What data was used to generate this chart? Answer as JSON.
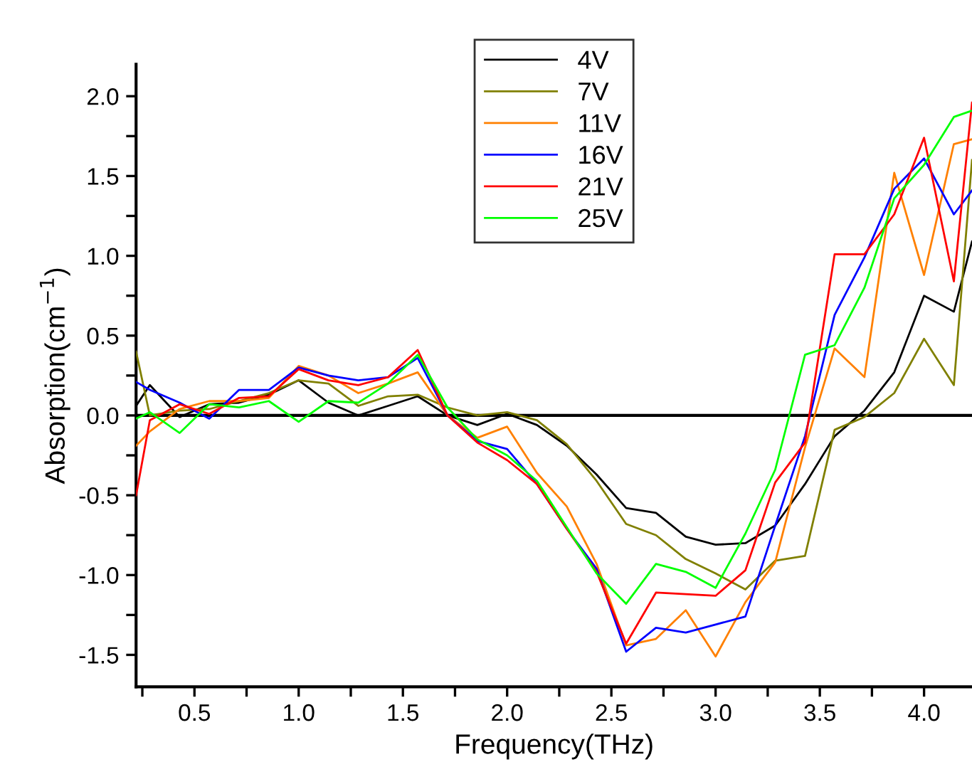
{
  "chart_data": {
    "type": "line",
    "xlabel": "Frequency(THz)",
    "ylabel": "Absorption(cm$^{−1}$)",
    "x": [
      0.22,
      0.286,
      0.429,
      0.571,
      0.714,
      0.857,
      1.0,
      1.143,
      1.286,
      1.429,
      1.571,
      1.714,
      1.857,
      2.0,
      2.143,
      2.286,
      2.429,
      2.571,
      2.714,
      2.857,
      3.0,
      3.143,
      3.286,
      3.429,
      3.571,
      3.714,
      3.857,
      4.0,
      4.143,
      4.23
    ],
    "series": [
      {
        "name": "4V",
        "color": "#000000",
        "values": [
          0.06,
          0.19,
          -0.01,
          0.07,
          0.08,
          0.13,
          0.22,
          0.08,
          0.0,
          0.06,
          0.12,
          0.0,
          -0.06,
          0.01,
          -0.06,
          -0.19,
          -0.37,
          -0.58,
          -0.61,
          -0.76,
          -0.81,
          -0.8,
          -0.69,
          -0.43,
          -0.13,
          0.03,
          0.27,
          0.75,
          0.65,
          1.09
        ]
      },
      {
        "name": "7V",
        "color": "#808000",
        "values": [
          0.4,
          0.0,
          0.03,
          0.04,
          0.09,
          0.14,
          0.22,
          0.2,
          0.06,
          0.12,
          0.13,
          0.05,
          0.0,
          0.02,
          -0.03,
          -0.18,
          -0.41,
          -0.68,
          -0.75,
          -0.9,
          -0.99,
          -1.09,
          -0.91,
          -0.88,
          -0.09,
          -0.01,
          0.14,
          0.48,
          0.19,
          1.6
        ]
      },
      {
        "name": "11V",
        "color": "#ff8000",
        "values": [
          -0.19,
          -0.1,
          0.04,
          0.09,
          0.09,
          0.11,
          0.31,
          0.25,
          0.14,
          0.2,
          0.27,
          0.0,
          -0.14,
          -0.07,
          -0.36,
          -0.57,
          -0.93,
          -1.44,
          -1.4,
          -1.22,
          -1.51,
          -1.17,
          -0.92,
          -0.2,
          0.42,
          0.24,
          1.52,
          0.88,
          1.7,
          1.73
        ]
      },
      {
        "name": "16V",
        "color": "#0000ff",
        "values": [
          0.21,
          0.16,
          0.08,
          -0.02,
          0.16,
          0.16,
          0.3,
          0.25,
          0.22,
          0.24,
          0.36,
          0.0,
          -0.16,
          -0.21,
          -0.43,
          -0.71,
          -0.96,
          -1.48,
          -1.33,
          -1.36,
          -1.31,
          -1.26,
          -0.69,
          -0.13,
          0.63,
          0.99,
          1.42,
          1.61,
          1.26,
          1.41
        ]
      },
      {
        "name": "21V",
        "color": "#ff0000",
        "values": [
          -0.5,
          -0.03,
          0.07,
          0.01,
          0.11,
          0.12,
          0.29,
          0.22,
          0.19,
          0.24,
          0.41,
          0.0,
          -0.17,
          -0.28,
          -0.43,
          -0.71,
          -0.98,
          -1.43,
          -1.11,
          -1.12,
          -1.13,
          -0.97,
          -0.42,
          -0.17,
          1.01,
          1.01,
          1.26,
          1.74,
          0.84,
          1.96
        ]
      },
      {
        "name": "25V",
        "color": "#00ff00",
        "values": [
          -0.02,
          0.02,
          -0.11,
          0.07,
          0.05,
          0.09,
          -0.04,
          0.09,
          0.08,
          0.2,
          0.38,
          0.05,
          -0.15,
          -0.25,
          -0.41,
          -0.7,
          -0.99,
          -1.18,
          -0.93,
          -0.98,
          -1.08,
          -0.74,
          -0.34,
          0.38,
          0.44,
          0.8,
          1.36,
          1.57,
          1.87,
          1.91
        ]
      }
    ],
    "xlim": [
      0.22,
      4.23
    ],
    "ylim": [
      -1.7,
      2.2
    ],
    "xticks": [
      {
        "value": 0.25,
        "label": null
      },
      0.5,
      {
        "value": 0.75,
        "label": null
      },
      {
        "value": 1,
        "label": "1.0"
      },
      {
        "value": 1.25,
        "label": null
      },
      1.5,
      {
        "value": 1.75,
        "label": null
      },
      {
        "value": 2,
        "label": "2.0"
      },
      {
        "value": 2.25,
        "label": null
      },
      2.5,
      {
        "value": 2.75,
        "label": null
      },
      {
        "value": 3,
        "label": "3.0"
      },
      {
        "value": 3.25,
        "label": null
      },
      3.5,
      {
        "value": 3.75,
        "label": null
      },
      {
        "value": 4,
        "label": "4.0"
      }
    ],
    "yticks": [
      -1.5,
      {
        "value": -1.25,
        "label": null
      },
      {
        "value": -1,
        "label": "-1.0"
      },
      {
        "value": -0.75,
        "label": null
      },
      -0.5,
      {
        "value": -0.25,
        "label": null
      },
      {
        "value": 0,
        "label": "0.0"
      },
      {
        "value": 0.25,
        "label": null
      },
      0.5,
      {
        "value": 0.75,
        "label": null
      },
      {
        "value": 1,
        "label": "1.0"
      },
      {
        "value": 1.25,
        "label": null
      },
      1.5,
      {
        "value": 1.75,
        "label": null
      },
      {
        "value": 2,
        "label": "2.0"
      }
    ],
    "ref_lines": [
      {
        "axis": "y",
        "value": 0,
        "color": "#000000"
      }
    ],
    "legend": "top",
    "grid": false,
    "marker": "none",
    "line_style": "solid"
  }
}
